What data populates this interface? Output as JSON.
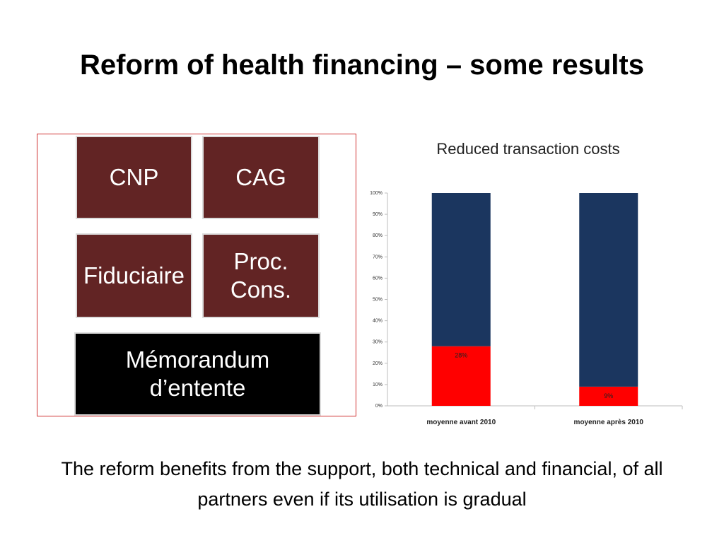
{
  "slide": {
    "title": "Reform of health financing – some results",
    "caption": "The reform benefits from the support, both technical and financial, of all partners even if its utilisation is gradual"
  },
  "diagram": {
    "boxes": [
      {
        "label": "CNP"
      },
      {
        "label": "CAG"
      },
      {
        "label": "Fiduciaire"
      },
      {
        "label": "Proc.\nCons."
      },
      {
        "label": "Mémorandum\nd’entente"
      }
    ],
    "colors": {
      "maroon": "#622424",
      "black": "#000000",
      "frame": "#d03030"
    }
  },
  "chart_data": {
    "type": "bar",
    "stacked": true,
    "percent_stacked": true,
    "title": "Reduced transaction costs",
    "categories": [
      "moyenne avant 2010",
      "moyenne après 2010"
    ],
    "series": [
      {
        "values": [
          28,
          9
        ],
        "labels": [
          "28%",
          "9%"
        ],
        "color": "#ff0000"
      },
      {
        "values": [
          72,
          91
        ],
        "color": "#1b365f"
      }
    ],
    "ylim": [
      0,
      100
    ],
    "yticks": [
      "0%",
      "10%",
      "20%",
      "30%",
      "40%",
      "50%",
      "60%",
      "70%",
      "80%",
      "90%",
      "100%"
    ],
    "grid": false,
    "legend": "none"
  }
}
